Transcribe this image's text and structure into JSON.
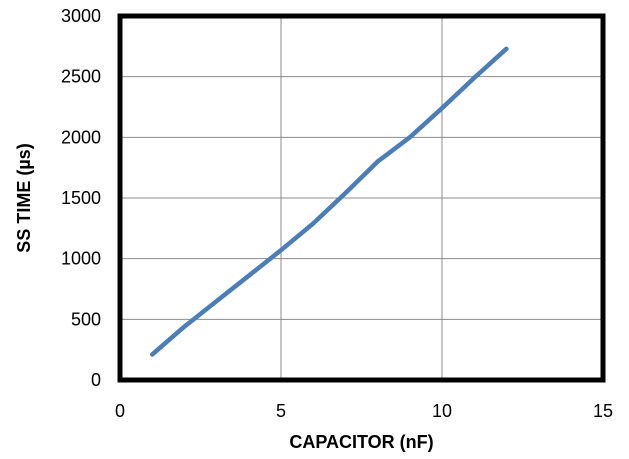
{
  "chart_data": {
    "type": "line",
    "title": "",
    "xlabel": "CAPACITOR  (nF)",
    "ylabel": "SS TIME (µs)",
    "xlim": [
      0,
      15
    ],
    "ylim": [
      0,
      3000
    ],
    "xticks": [
      0,
      5,
      10,
      15
    ],
    "yticks": [
      0,
      500,
      1000,
      1500,
      2000,
      2500,
      3000
    ],
    "xtick_labels": [
      "0",
      "5",
      "10",
      "15"
    ],
    "ytick_labels": [
      "0",
      "500",
      "1000",
      "1500",
      "2000",
      "2500",
      "3000"
    ],
    "grid": true,
    "legend": false,
    "series_color": "#4a7ebb",
    "series": [
      {
        "x": [
          1,
          2,
          3,
          4,
          5,
          6,
          7,
          8,
          9,
          10,
          11,
          12
        ],
        "y": [
          210,
          440,
          650,
          860,
          1070,
          1290,
          1540,
          1800,
          2000,
          2240,
          2490,
          2730
        ]
      }
    ]
  }
}
